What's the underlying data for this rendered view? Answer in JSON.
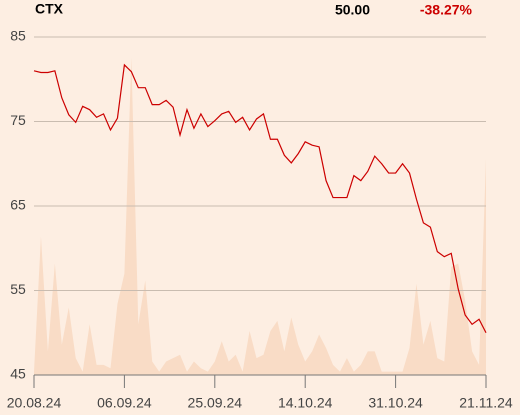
{
  "chart_data": {
    "type": "line",
    "title": "CTX",
    "last": "50.00",
    "change": "-38.27%",
    "categories": [
      "20.08.24",
      null,
      null,
      null,
      null,
      null,
      null,
      null,
      null,
      null,
      null,
      null,
      null,
      "06.09.24",
      null,
      null,
      null,
      null,
      null,
      null,
      null,
      null,
      null,
      null,
      null,
      null,
      "25.09.24",
      null,
      null,
      null,
      null,
      null,
      null,
      null,
      null,
      null,
      null,
      null,
      null,
      "14.10.24",
      null,
      null,
      null,
      null,
      null,
      null,
      null,
      null,
      null,
      null,
      null,
      null,
      "31.10.24",
      null,
      null,
      null,
      null,
      null,
      null,
      null,
      null,
      null,
      null,
      null,
      null,
      "21.11.24"
    ],
    "series": [
      {
        "name": "price",
        "color": "#cc0000",
        "values": [
          81.0,
          80.8,
          80.8,
          81.0,
          77.8,
          75.8,
          74.9,
          76.8,
          76.4,
          75.5,
          75.9,
          74.0,
          75.4,
          81.7,
          80.9,
          79.0,
          79.0,
          77.0,
          77.0,
          77.5,
          76.7,
          73.4,
          76.4,
          74.2,
          75.9,
          74.4,
          75.1,
          75.9,
          76.2,
          74.9,
          75.5,
          74.0,
          75.3,
          75.9,
          72.9,
          72.9,
          71.0,
          70.1,
          71.2,
          72.6,
          72.2,
          72.0,
          68.0,
          66.0,
          66.0,
          66.0,
          68.6,
          68.0,
          69.1,
          70.9,
          70.0,
          68.9,
          68.9,
          70.0,
          68.9,
          65.8,
          63.0,
          62.5,
          59.6,
          59.0,
          59.4,
          55.2,
          52.1,
          51.0,
          51.6,
          50.0
        ]
      },
      {
        "name": "volume",
        "color": "#f9dcc6",
        "axis": "y2",
        "values": [
          1,
          41,
          7,
          33,
          9,
          20,
          5,
          1,
          15,
          3,
          3,
          2,
          21,
          30,
          94,
          15,
          28,
          4,
          1,
          4,
          5,
          6,
          1,
          4,
          2,
          1,
          4,
          10,
          4,
          6,
          1,
          13,
          5,
          6,
          13,
          16,
          7,
          17,
          9,
          4,
          7,
          12,
          8,
          3,
          1,
          5,
          1,
          3,
          7,
          7,
          1,
          1,
          1,
          1,
          8,
          27,
          9,
          16,
          5,
          4,
          32,
          33,
          22,
          7,
          3,
          64
        ]
      }
    ],
    "ylim": [
      45,
      85
    ],
    "yticks": [
      45,
      55,
      65,
      75,
      85
    ],
    "y2lim": [
      0,
      100
    ],
    "grid": true
  }
}
